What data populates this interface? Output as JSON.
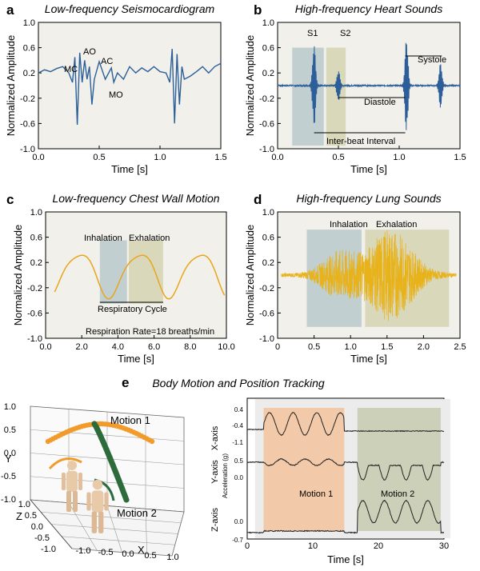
{
  "figure_title": "Body Motion and Position Tracking",
  "colors": {
    "blue": "#2c5f9a",
    "orange": "#e9a51c",
    "yellow": "#e8b21a",
    "shade_blue": "#b8c9cc",
    "shade_olive": "#d6d3b2",
    "shade_peach": "#f3c7a2",
    "shade_sage": "#c9cdb4",
    "dark_green": "#2e6b3a",
    "marker_orange": "#f29a2a"
  },
  "chart_data": [
    {
      "panel": "a",
      "type": "line",
      "title": "Low-frequency Seismocardiogram",
      "xlabel": "Time [s]",
      "ylabel": "Normalized Amplitude",
      "xlim": [
        0,
        1.5
      ],
      "ylim": [
        -1.0,
        1.0
      ],
      "xticks": [
        "0.0",
        "0.5",
        "1.0",
        "1.5"
      ],
      "yticks": [
        "-1.0",
        "-0.6",
        "-0.2",
        "0.2",
        "0.6",
        "1.0"
      ],
      "annotations": [
        "MC",
        "AO",
        "AC",
        "MO"
      ],
      "x": [
        0,
        0.05,
        0.1,
        0.15,
        0.2,
        0.25,
        0.28,
        0.3,
        0.32,
        0.34,
        0.36,
        0.38,
        0.4,
        0.42,
        0.44,
        0.46,
        0.5,
        0.55,
        0.6,
        0.62,
        0.65,
        0.7,
        0.75,
        0.8,
        0.85,
        0.9,
        0.95,
        1.0,
        1.05,
        1.08,
        1.1,
        1.12,
        1.14,
        1.16,
        1.18,
        1.2,
        1.25,
        1.3,
        1.35,
        1.4,
        1.45,
        1.5
      ],
      "y": [
        0.2,
        0.25,
        0.22,
        0.27,
        0.3,
        0.2,
        0.05,
        0.45,
        -0.62,
        0.52,
        0.05,
        0.4,
        0.1,
        0.3,
        -0.3,
        0.1,
        0.38,
        0.1,
        0.28,
        0.05,
        0.2,
        0.1,
        0.3,
        0.2,
        0.28,
        0.22,
        0.3,
        0.22,
        0.2,
        0.05,
        0.58,
        -0.6,
        0.5,
        -0.3,
        0.3,
        0.1,
        0.15,
        0.22,
        0.3,
        0.2,
        0.3,
        0.35
      ]
    },
    {
      "panel": "b",
      "type": "line",
      "title": "High-frequency Heart Sounds",
      "xlabel": "Time [s]",
      "ylabel": "Normalized Amplitude",
      "xlim": [
        0,
        1.5
      ],
      "ylim": [
        -1.0,
        1.0
      ],
      "xticks": [
        "0.0",
        "0.5",
        "1.0",
        "1.5"
      ],
      "yticks": [
        "-1.0",
        "-0.6",
        "-0.2",
        "0.2",
        "0.6",
        "1.0"
      ],
      "annotations": [
        "S1",
        "S2",
        "Systole",
        "Diastole",
        "Inter-beat Interval"
      ],
      "segments": [
        {
          "label": "S1",
          "x": [
            0.12,
            0.38
          ]
        },
        {
          "label": "S2",
          "x": [
            0.4,
            0.56
          ]
        }
      ],
      "bursts": [
        {
          "t": 0.3,
          "amp": 0.65
        },
        {
          "t": 0.5,
          "amp": 0.25
        },
        {
          "t": 1.06,
          "amp": 0.75
        },
        {
          "t": 1.34,
          "amp": 0.35
        }
      ]
    },
    {
      "panel": "c",
      "type": "line",
      "title": "Low-frequency Chest Wall Motion",
      "xlabel": "Time [s]",
      "ylabel": "Normalized Amplitude",
      "xlim": [
        0,
        10.0
      ],
      "ylim": [
        -1.0,
        1.0
      ],
      "xticks": [
        "0.0",
        "2.0",
        "4.0",
        "6.0",
        "8.0",
        "10.0"
      ],
      "yticks": [
        "-1.0",
        "-0.6",
        "-0.2",
        "0.2",
        "0.6",
        "1.0"
      ],
      "annotations": [
        "Inhalation",
        "Exhalation",
        "Respiratory Cycle",
        "Respiration Rate=18 breaths/min"
      ],
      "segments": [
        {
          "label": "Inhalation",
          "x": [
            3.0,
            4.5
          ]
        },
        {
          "label": "Exhalation",
          "x": [
            4.6,
            6.5
          ]
        }
      ],
      "period_s": 3.33
    },
    {
      "panel": "d",
      "type": "line",
      "title": "High-frequency Lung Sounds",
      "xlabel": "Time [s]",
      "ylabel": "Normalized Amplitude",
      "xlim": [
        0,
        2.5
      ],
      "ylim": [
        -1.0,
        1.0
      ],
      "xticks": [
        "0",
        "0.5",
        "1.0",
        "1.5",
        "2.0",
        "2.5"
      ],
      "yticks": [
        "-1.0",
        "-0.6",
        "-0.2",
        "0.2",
        "0.6",
        "1.0"
      ],
      "annotations": [
        "Inhalation",
        "Exhalation"
      ],
      "segments": [
        {
          "label": "Inhalation",
          "x": [
            0.4,
            1.15
          ]
        },
        {
          "label": "Exhalation",
          "x": [
            1.2,
            2.35
          ]
        }
      ]
    },
    {
      "panel": "e",
      "type": "scatter",
      "title": "Body Motion and Position Tracking",
      "axes3d": {
        "x_label": "X",
        "y_label": "Y",
        "z_label": "Z",
        "y_ticks": [
          "1.0",
          "0.5",
          "0.0",
          "-0.5",
          "-1.0"
        ],
        "x_ticks": [
          "-1.0",
          "-0.5",
          "0.0",
          "0.5",
          "1.0"
        ],
        "z_ticks": [
          "-1.0",
          "-0.5",
          "0.0",
          "0.5",
          "1.0"
        ]
      },
      "annotations": [
        "Motion 1",
        "Motion 2"
      ]
    },
    {
      "panel": "e-right",
      "type": "line",
      "xlabel": "Time [s]",
      "ylabel": "Acceleration (g)",
      "xlim": [
        0,
        30
      ],
      "xticks": [
        "0",
        "10",
        "20",
        "30"
      ],
      "rows": [
        {
          "name": "X-axis",
          "yticks": [
            "0.4",
            "-0.4",
            "-1.1"
          ]
        },
        {
          "name": "Y-axis",
          "yticks": [
            "0.5",
            "0.0"
          ]
        },
        {
          "name": "Z-axis",
          "yticks": [
            "0.0",
            "-0.7"
          ]
        }
      ],
      "segments": [
        {
          "label": "Motion 1",
          "x": [
            2.5,
            14.8
          ]
        },
        {
          "label": "Motion 2",
          "x": [
            16.8,
            29.5
          ]
        }
      ]
    }
  ]
}
